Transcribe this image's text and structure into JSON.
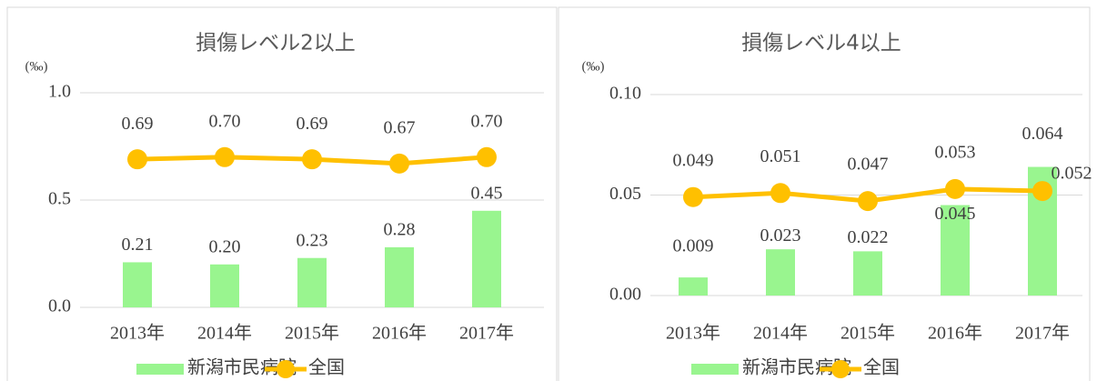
{
  "chart_data": [
    {
      "type": "bar-line",
      "title": "損傷レベル2以上",
      "y_unit": "(‰)",
      "categories": [
        "2013年",
        "2014年",
        "2015年",
        "2016年",
        "2017年"
      ],
      "series": [
        {
          "name": "新潟市民病院",
          "type": "bar",
          "color": "#99f58f",
          "values": [
            0.21,
            0.2,
            0.23,
            0.28,
            0.45
          ],
          "value_labels": [
            "0.21",
            "0.20",
            "0.23",
            "0.28",
            "0.45"
          ]
        },
        {
          "name": "全国",
          "type": "line",
          "color": "#ffc000",
          "values": [
            0.69,
            0.7,
            0.69,
            0.67,
            0.7
          ],
          "value_labels": [
            "0.69",
            "0.70",
            "0.69",
            "0.67",
            "0.70"
          ]
        }
      ],
      "ylim": [
        0,
        1
      ],
      "yticks": [
        {
          "value": 0,
          "label": "0.0"
        },
        0.5,
        {
          "value": 1,
          "label": "1.0"
        }
      ],
      "grid": true
    },
    {
      "type": "bar-line",
      "title": "損傷レベル4以上",
      "y_unit": "(‰)",
      "categories": [
        "2013年",
        "2014年",
        "2015年",
        "2016年",
        "2017年"
      ],
      "series": [
        {
          "name": "新潟市民病院",
          "type": "bar",
          "color": "#99f58f",
          "values": [
            0.009,
            0.023,
            0.022,
            0.045,
            0.064
          ],
          "value_labels": [
            "0.009",
            "0.023",
            "0.022",
            "0.045",
            "0.064"
          ]
        },
        {
          "name": "全国",
          "type": "line",
          "color": "#ffc000",
          "values": [
            0.049,
            0.051,
            0.047,
            0.053,
            0.052
          ],
          "value_labels": [
            "0.049",
            "0.051",
            "0.047",
            "0.053",
            "0.052"
          ]
        }
      ],
      "ylim": [
        0,
        0.1
      ],
      "yticks": [
        {
          "value": 0,
          "label": "0.00"
        },
        {
          "value": 0.05,
          "label": "0.05"
        },
        {
          "value": 0.1,
          "label": "0.10"
        }
      ],
      "grid": true
    }
  ]
}
